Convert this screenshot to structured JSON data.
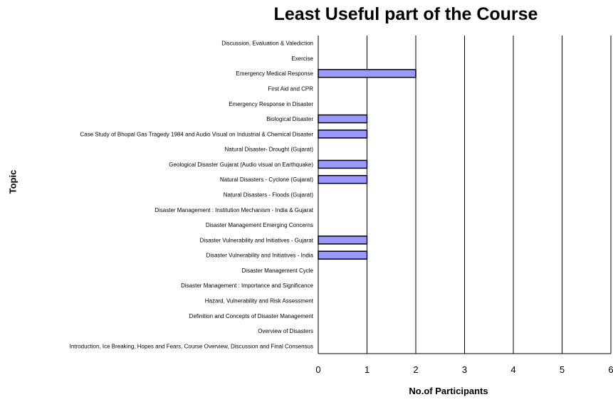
{
  "chart_data": {
    "type": "bar",
    "orientation": "horizontal",
    "title": "Least Useful part of the Course",
    "xlabel": "No.of Participants",
    "ylabel": "Topic",
    "xlim": [
      0,
      6
    ],
    "xticks": [
      0,
      1,
      2,
      3,
      4,
      5,
      6
    ],
    "grid": "vertical major gridlines",
    "legend": "none",
    "bar_color": "#9999ff",
    "bar_edge_color": "#000000",
    "categories": [
      "Discussion, Evaluation & Valediction",
      "Exercise",
      "Emergency Medical Response",
      "First Aid and CPR",
      "Emergency Response in Disaster",
      "Biological Disaster",
      "Case Study of Bhopal Gas Tragedy 1984 and Audio Visual on Industrial & Chemical Disaster",
      "Natural Disaster- Drought (Gujarat)",
      "Geological Disaster Gujarat (Audio visual on Earthquake)",
      "Natural Disasters - Cyclone (Gujarat)",
      "Natural Disasters - Floods (Gujarat)",
      "Disaster Management : Institution Mechanism - India & Gujarat",
      "Disaster Management Emerging Concerns",
      "Disaster Vulnerability and Initiatives - Gujarat",
      "Disaster Vulnerability and Initiatives - India",
      "Disaster Management Cycle",
      "Disaster Management : Importance and Significance",
      "Hazard, Vulnerability and Risk Assessment",
      "Definition and Concepts of Disaster Management",
      "Overview of Disasters",
      "Introduction, Ice Breaking, Hopes and Fears, Course Overview, Discussion and Final Consensus"
    ],
    "values": [
      0,
      0,
      2,
      0,
      0,
      1,
      1,
      0,
      1,
      1,
      0,
      0,
      0,
      1,
      1,
      0,
      0,
      0,
      0,
      0,
      0
    ]
  }
}
